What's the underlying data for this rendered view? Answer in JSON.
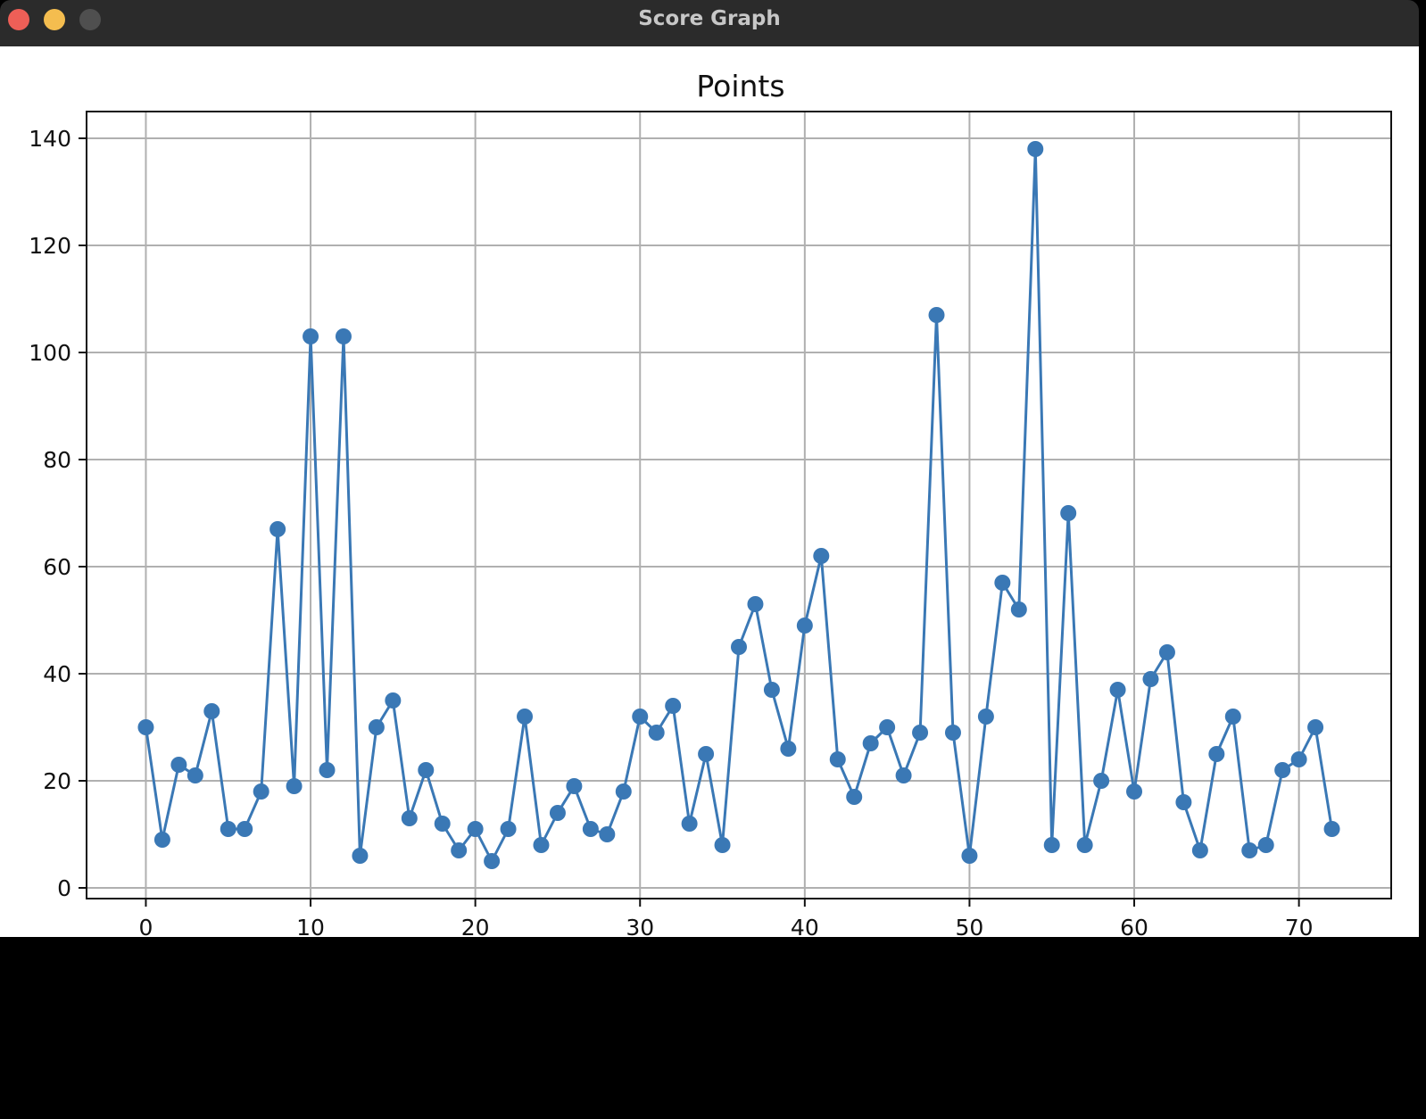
{
  "window": {
    "title": "Score Graph"
  },
  "chart_data": {
    "type": "line",
    "title": "Points",
    "xlabel": "",
    "ylabel": "",
    "x_ticks": [
      0,
      10,
      20,
      30,
      40,
      50,
      60,
      70
    ],
    "y_ticks": [
      0,
      20,
      40,
      60,
      80,
      100,
      120,
      140
    ],
    "xlim": [
      -3.6,
      75.6
    ],
    "ylim": [
      -2,
      145
    ],
    "grid": true,
    "line_color": "#3a78b5",
    "marker": "circle",
    "x": [
      0,
      1,
      2,
      3,
      4,
      5,
      6,
      7,
      8,
      9,
      10,
      11,
      12,
      13,
      14,
      15,
      16,
      17,
      18,
      19,
      20,
      21,
      22,
      23,
      24,
      25,
      26,
      27,
      28,
      29,
      30,
      31,
      32,
      33,
      34,
      35,
      36,
      37,
      38,
      39,
      40,
      41,
      42,
      43,
      44,
      45,
      46,
      47,
      48,
      49,
      50,
      51,
      52,
      53,
      54,
      55,
      56,
      57,
      58,
      59,
      60,
      61,
      62,
      63,
      64,
      65,
      66,
      67,
      68,
      69,
      70,
      71,
      72
    ],
    "y": [
      30,
      9,
      23,
      21,
      33,
      11,
      11,
      18,
      67,
      19,
      103,
      22,
      103,
      6,
      30,
      35,
      13,
      22,
      12,
      7,
      11,
      5,
      11,
      32,
      8,
      14,
      19,
      11,
      10,
      18,
      32,
      29,
      34,
      12,
      25,
      8,
      45,
      53,
      37,
      26,
      49,
      62,
      24,
      17,
      27,
      30,
      21,
      29,
      107,
      29,
      6,
      32,
      57,
      52,
      138,
      8,
      70,
      8,
      20,
      37,
      18,
      39,
      44,
      16,
      7,
      25,
      32,
      7,
      8,
      22,
      24,
      30,
      11
    ]
  }
}
